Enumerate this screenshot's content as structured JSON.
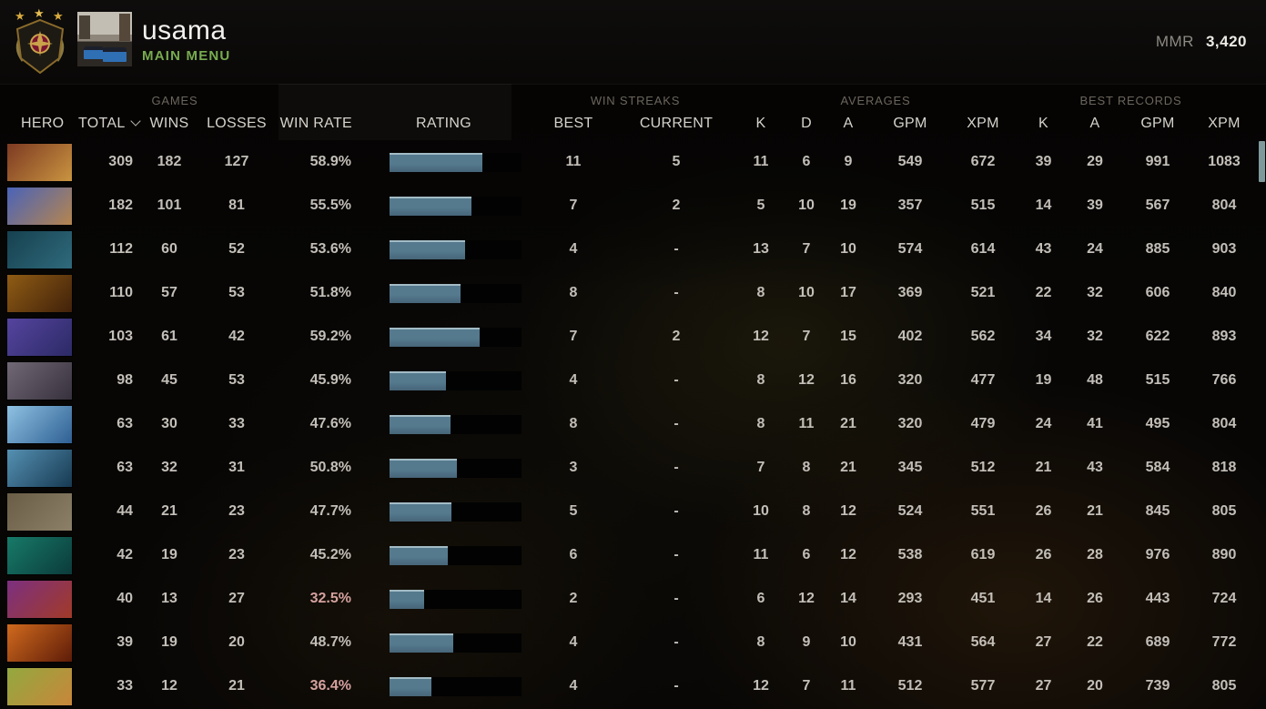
{
  "header": {
    "player_name": "usama",
    "nav_label": "MAIN MENU",
    "mmr_label": "MMR",
    "mmr_value": "3,420"
  },
  "table": {
    "groups": {
      "games": "GAMES",
      "win_streaks": "WIN STREAKS",
      "averages": "AVERAGES",
      "best_records": "BEST RECORDS"
    },
    "columns": {
      "hero": "HERO",
      "total": "TOTAL",
      "wins": "WINS",
      "losses": "LOSSES",
      "win_rate": "WIN RATE",
      "rating": "RATING",
      "best": "BEST",
      "current": "CURRENT",
      "k": "K",
      "d": "D",
      "a": "A",
      "gpm": "GPM",
      "xpm": "XPM",
      "k2": "K",
      "a2": "A",
      "gpm2": "GPM",
      "xpm2": "XPM"
    },
    "bar_fill_color": "#557a8e",
    "low_winrate_color": "#d5a19e",
    "rows": [
      {
        "total": "309",
        "wins": "182",
        "losses": "127",
        "win_rate": "58.9%",
        "rating_pct": 70,
        "low": false,
        "best": "11",
        "current": "5",
        "k": "11",
        "d": "6",
        "a": "9",
        "gpm": "549",
        "xpm": "672",
        "bk": "39",
        "ba": "29",
        "bgpm": "991",
        "bxpm": "1083",
        "portrait": [
          "#7d3a22",
          "#c99440"
        ]
      },
      {
        "total": "182",
        "wins": "101",
        "losses": "81",
        "win_rate": "55.5%",
        "rating_pct": 62,
        "low": false,
        "best": "7",
        "current": "2",
        "k": "5",
        "d": "10",
        "a": "19",
        "gpm": "357",
        "xpm": "515",
        "bk": "14",
        "ba": "39",
        "bgpm": "567",
        "bxpm": "804",
        "portrait": [
          "#4a63b8",
          "#b5854e"
        ]
      },
      {
        "total": "112",
        "wins": "60",
        "losses": "52",
        "win_rate": "53.6%",
        "rating_pct": 57,
        "low": false,
        "best": "4",
        "current": "-",
        "k": "13",
        "d": "7",
        "a": "10",
        "gpm": "574",
        "xpm": "614",
        "bk": "43",
        "ba": "24",
        "bgpm": "885",
        "bxpm": "903",
        "portrait": [
          "#16414f",
          "#2f6a7c"
        ]
      },
      {
        "total": "110",
        "wins": "57",
        "losses": "53",
        "win_rate": "51.8%",
        "rating_pct": 54,
        "low": false,
        "best": "8",
        "current": "-",
        "k": "8",
        "d": "10",
        "a": "17",
        "gpm": "369",
        "xpm": "521",
        "bk": "22",
        "ba": "32",
        "bgpm": "606",
        "bxpm": "840",
        "portrait": [
          "#8f5c14",
          "#41210a"
        ]
      },
      {
        "total": "103",
        "wins": "61",
        "losses": "42",
        "win_rate": "59.2%",
        "rating_pct": 68,
        "low": false,
        "best": "7",
        "current": "2",
        "k": "12",
        "d": "7",
        "a": "15",
        "gpm": "402",
        "xpm": "562",
        "bk": "34",
        "ba": "32",
        "bgpm": "622",
        "bxpm": "893",
        "portrait": [
          "#55449e",
          "#2c2a66"
        ]
      },
      {
        "total": "98",
        "wins": "45",
        "losses": "53",
        "win_rate": "45.9%",
        "rating_pct": 43,
        "low": false,
        "best": "4",
        "current": "-",
        "k": "8",
        "d": "12",
        "a": "16",
        "gpm": "320",
        "xpm": "477",
        "bk": "19",
        "ba": "48",
        "bgpm": "515",
        "bxpm": "766",
        "portrait": [
          "#716875",
          "#37313d"
        ]
      },
      {
        "total": "63",
        "wins": "30",
        "losses": "33",
        "win_rate": "47.6%",
        "rating_pct": 46,
        "low": false,
        "best": "8",
        "current": "-",
        "k": "8",
        "d": "11",
        "a": "21",
        "gpm": "320",
        "xpm": "479",
        "bk": "24",
        "ba": "41",
        "bgpm": "495",
        "bxpm": "804",
        "portrait": [
          "#8fc2e2",
          "#2e5f93"
        ]
      },
      {
        "total": "63",
        "wins": "32",
        "losses": "31",
        "win_rate": "50.8%",
        "rating_pct": 51,
        "low": false,
        "best": "3",
        "current": "-",
        "k": "7",
        "d": "8",
        "a": "21",
        "gpm": "345",
        "xpm": "512",
        "bk": "21",
        "ba": "43",
        "bgpm": "584",
        "bxpm": "818",
        "portrait": [
          "#5590b2",
          "#173a52"
        ]
      },
      {
        "total": "44",
        "wins": "21",
        "losses": "23",
        "win_rate": "47.7%",
        "rating_pct": 47,
        "low": false,
        "best": "5",
        "current": "-",
        "k": "10",
        "d": "8",
        "a": "12",
        "gpm": "524",
        "xpm": "551",
        "bk": "26",
        "ba": "21",
        "bgpm": "845",
        "bxpm": "805",
        "portrait": [
          "#6a5d46",
          "#8c8068"
        ]
      },
      {
        "total": "42",
        "wins": "19",
        "losses": "23",
        "win_rate": "45.2%",
        "rating_pct": 44,
        "low": false,
        "best": "6",
        "current": "-",
        "k": "11",
        "d": "6",
        "a": "12",
        "gpm": "538",
        "xpm": "619",
        "bk": "26",
        "ba": "28",
        "bgpm": "976",
        "bxpm": "890",
        "portrait": [
          "#177a68",
          "#0b3b3b"
        ]
      },
      {
        "total": "40",
        "wins": "13",
        "losses": "27",
        "win_rate": "32.5%",
        "rating_pct": 26,
        "low": true,
        "best": "2",
        "current": "-",
        "k": "6",
        "d": "12",
        "a": "14",
        "gpm": "293",
        "xpm": "451",
        "bk": "14",
        "ba": "26",
        "bgpm": "443",
        "bxpm": "724",
        "portrait": [
          "#7c3080",
          "#a23a28"
        ]
      },
      {
        "total": "39",
        "wins": "19",
        "losses": "20",
        "win_rate": "48.7%",
        "rating_pct": 48,
        "low": false,
        "best": "4",
        "current": "-",
        "k": "8",
        "d": "9",
        "a": "10",
        "gpm": "431",
        "xpm": "564",
        "bk": "27",
        "ba": "22",
        "bgpm": "689",
        "bxpm": "772",
        "portrait": [
          "#d06a1e",
          "#5e1c08"
        ]
      },
      {
        "total": "33",
        "wins": "12",
        "losses": "21",
        "win_rate": "36.4%",
        "rating_pct": 32,
        "low": true,
        "best": "4",
        "current": "-",
        "k": "12",
        "d": "7",
        "a": "11",
        "gpm": "512",
        "xpm": "577",
        "bk": "27",
        "ba": "20",
        "bgpm": "739",
        "bxpm": "805",
        "portrait": [
          "#93a93f",
          "#c8863a"
        ]
      }
    ]
  }
}
